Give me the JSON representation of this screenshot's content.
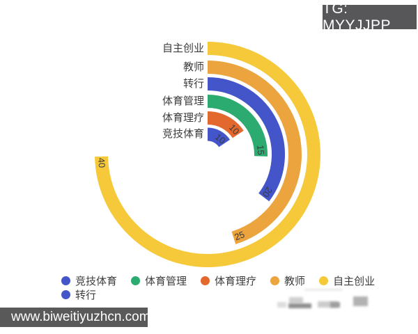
{
  "badge": {
    "text": "TG: MYYJJPP",
    "bg": "#57575a",
    "color": "#ffffff"
  },
  "watermark": {
    "text": "www.biweitiyuzhcn.com",
    "bg": "#595959",
    "color": "#ffffff"
  },
  "chart_data": {
    "type": "bar",
    "subtype": "radial-polar",
    "title": "",
    "categories": [
      "竞技体育",
      "体育理疗",
      "体育管理",
      "转行",
      "教师",
      "自主创业"
    ],
    "values": [
      10,
      10,
      15,
      20,
      25,
      40
    ],
    "value_labels": [
      "10",
      "10",
      "15",
      "20",
      "25",
      "40"
    ],
    "colors": [
      "#4355c9",
      "#e2682e",
      "#2cab70",
      "#4355c9",
      "#eca43e",
      "#f6c93b"
    ],
    "direction": "clockwise",
    "start_position": "top",
    "grid": false,
    "legend_position": "bottom",
    "legend": [
      {
        "label": "竞技体育",
        "color": "#4355c9"
      },
      {
        "label": "体育管理",
        "color": "#2cab70"
      },
      {
        "label": "体育理疗",
        "color": "#e2682e"
      },
      {
        "label": "教师",
        "color": "#eca43e"
      },
      {
        "label": "自主创业",
        "color": "#f6c93b"
      },
      {
        "label": "转行",
        "color": "#4355c9"
      }
    ],
    "category_label_color": "#3d3d3d",
    "value_label_color": "#3a3a3a"
  }
}
